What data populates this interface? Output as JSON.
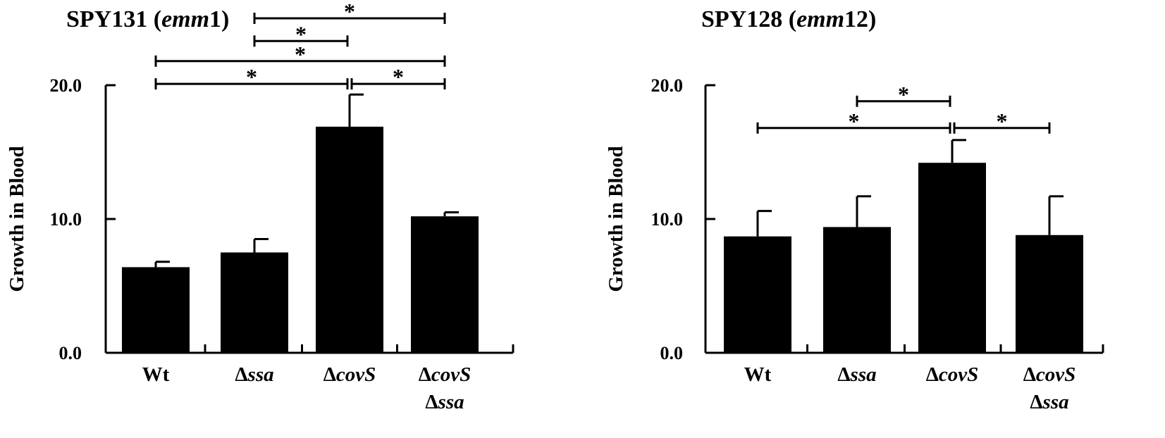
{
  "chart_data": [
    {
      "type": "bar",
      "title": {
        "prefix": "SPY131 (",
        "italic": "emm",
        "suffix": "1)"
      },
      "ylabel": "Growth in Blood",
      "ylim": [
        0,
        20
      ],
      "yticks": [
        "0.0",
        "10.0",
        "20.0"
      ],
      "categories": [
        {
          "lines": [
            [
              {
                "t": "Wt",
                "i": false
              }
            ]
          ]
        },
        {
          "lines": [
            [
              {
                "t": "Δ",
                "i": false
              },
              {
                "t": "ssa",
                "i": true
              }
            ]
          ]
        },
        {
          "lines": [
            [
              {
                "t": "Δ",
                "i": false
              },
              {
                "t": "covS",
                "i": true
              }
            ]
          ]
        },
        {
          "lines": [
            [
              {
                "t": "Δ",
                "i": false
              },
              {
                "t": "covS",
                "i": true
              }
            ],
            [
              {
                "t": "Δ",
                "i": false
              },
              {
                "t": "ssa",
                "i": true
              }
            ]
          ]
        }
      ],
      "values": [
        6.4,
        7.5,
        16.9,
        10.2
      ],
      "errors": [
        0.4,
        1.0,
        2.4,
        0.3
      ],
      "significance": [
        {
          "from": 1,
          "to": 3,
          "level": 25,
          "label": "*"
        },
        {
          "from": 1,
          "to": 2,
          "level": 23.3,
          "label": "*"
        },
        {
          "from": 0,
          "to": 3,
          "level": 21.8,
          "label": "*"
        },
        {
          "from": 0,
          "to": 2,
          "level": 20.1,
          "label": "*"
        },
        {
          "from": 2,
          "to": 3,
          "level": 20.1,
          "label": "*"
        }
      ]
    },
    {
      "type": "bar",
      "title": {
        "prefix": "SPY128 (",
        "italic": "emm",
        "suffix": "12)"
      },
      "ylabel": "Growth in Blood",
      "ylim": [
        0,
        20
      ],
      "yticks": [
        "0.0",
        "10.0",
        "20.0"
      ],
      "categories": [
        {
          "lines": [
            [
              {
                "t": "Wt",
                "i": false
              }
            ]
          ]
        },
        {
          "lines": [
            [
              {
                "t": "Δ",
                "i": false
              },
              {
                "t": "ssa",
                "i": true
              }
            ]
          ]
        },
        {
          "lines": [
            [
              {
                "t": "Δ",
                "i": false
              },
              {
                "t": "covS",
                "i": true
              }
            ]
          ]
        },
        {
          "lines": [
            [
              {
                "t": "Δ",
                "i": false
              },
              {
                "t": "covS",
                "i": true
              }
            ],
            [
              {
                "t": "Δ",
                "i": false
              },
              {
                "t": "ssa",
                "i": true
              }
            ]
          ]
        }
      ],
      "values": [
        8.7,
        9.4,
        14.2,
        8.8
      ],
      "errors": [
        1.9,
        2.3,
        1.7,
        2.9
      ],
      "significance": [
        {
          "from": 1,
          "to": 2,
          "level": 18.8,
          "label": "*"
        },
        {
          "from": 0,
          "to": 2,
          "level": 16.8,
          "label": "*"
        },
        {
          "from": 2,
          "to": 3,
          "level": 16.8,
          "label": "*"
        }
      ]
    }
  ]
}
